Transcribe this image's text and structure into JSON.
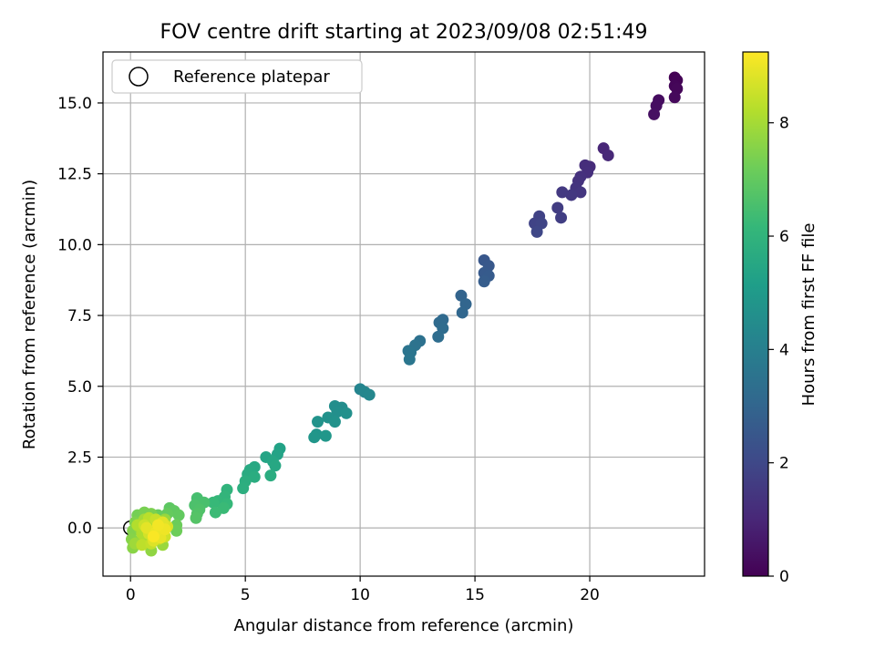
{
  "chart_data": {
    "type": "scatter",
    "title": "FOV centre drift starting at 2023/09/08 02:51:49",
    "xlabel": "Angular distance from reference (arcmin)",
    "ylabel": "Rotation from reference (arcmin)",
    "xlim": [
      -1.2,
      25.0
    ],
    "ylim": [
      -1.7,
      16.8
    ],
    "xticks": [
      0,
      5,
      10,
      15,
      20
    ],
    "xtick_labels": [
      "0",
      "5",
      "10",
      "15",
      "20"
    ],
    "yticks": [
      0.0,
      2.5,
      5.0,
      7.5,
      10.0,
      12.5,
      15.0
    ],
    "ytick_labels": [
      "0.0",
      "2.5",
      "5.0",
      "7.5",
      "10.0",
      "12.5",
      "15.0"
    ],
    "grid": true,
    "legend": {
      "position": "top-left",
      "entries": [
        "Reference platepar"
      ]
    },
    "reference_point": {
      "x": 0,
      "y": 0
    },
    "colorbar": {
      "label": "Hours from first FF file",
      "range": [
        0,
        9.25
      ],
      "ticks": [
        0,
        2,
        4,
        6,
        8
      ],
      "tick_labels": [
        "0",
        "2",
        "4",
        "6",
        "8"
      ],
      "colormap": "viridis"
    },
    "series": [
      {
        "values": [
          {
            "x": 23.7,
            "y": 15.9,
            "t": 0.0
          },
          {
            "x": 23.8,
            "y": 15.8,
            "t": 0.05
          },
          {
            "x": 23.7,
            "y": 15.6,
            "t": 0.1
          },
          {
            "x": 23.8,
            "y": 15.5,
            "t": 0.15
          },
          {
            "x": 23.7,
            "y": 15.2,
            "t": 0.2
          },
          {
            "x": 23.0,
            "y": 15.1,
            "t": 0.3
          },
          {
            "x": 22.9,
            "y": 14.9,
            "t": 0.35
          },
          {
            "x": 22.8,
            "y": 14.6,
            "t": 0.4
          },
          {
            "x": 20.6,
            "y": 13.4,
            "t": 1.0
          },
          {
            "x": 20.8,
            "y": 13.15,
            "t": 1.05
          },
          {
            "x": 20.0,
            "y": 12.75,
            "t": 1.15
          },
          {
            "x": 19.8,
            "y": 12.8,
            "t": 1.2
          },
          {
            "x": 19.9,
            "y": 12.55,
            "t": 1.25
          },
          {
            "x": 19.6,
            "y": 12.4,
            "t": 1.3
          },
          {
            "x": 19.5,
            "y": 12.25,
            "t": 1.35
          },
          {
            "x": 19.4,
            "y": 12.0,
            "t": 1.4
          },
          {
            "x": 19.6,
            "y": 11.85,
            "t": 1.45
          },
          {
            "x": 19.2,
            "y": 11.75,
            "t": 1.5
          },
          {
            "x": 18.8,
            "y": 11.85,
            "t": 1.55
          },
          {
            "x": 18.6,
            "y": 11.3,
            "t": 1.65
          },
          {
            "x": 18.75,
            "y": 10.95,
            "t": 1.7
          },
          {
            "x": 17.8,
            "y": 11.0,
            "t": 1.8
          },
          {
            "x": 17.6,
            "y": 10.75,
            "t": 1.85
          },
          {
            "x": 17.9,
            "y": 10.75,
            "t": 1.9
          },
          {
            "x": 17.7,
            "y": 10.45,
            "t": 1.95
          },
          {
            "x": 15.4,
            "y": 9.45,
            "t": 2.5
          },
          {
            "x": 15.6,
            "y": 9.25,
            "t": 2.55
          },
          {
            "x": 15.4,
            "y": 9.0,
            "t": 2.6
          },
          {
            "x": 15.6,
            "y": 8.9,
            "t": 2.65
          },
          {
            "x": 15.4,
            "y": 8.7,
            "t": 2.7
          },
          {
            "x": 14.4,
            "y": 8.2,
            "t": 2.95
          },
          {
            "x": 14.6,
            "y": 7.9,
            "t": 3.0
          },
          {
            "x": 14.45,
            "y": 7.6,
            "t": 3.05
          },
          {
            "x": 13.6,
            "y": 7.35,
            "t": 3.15
          },
          {
            "x": 13.45,
            "y": 7.25,
            "t": 3.2
          },
          {
            "x": 13.6,
            "y": 7.05,
            "t": 3.25
          },
          {
            "x": 13.4,
            "y": 6.75,
            "t": 3.3
          },
          {
            "x": 12.6,
            "y": 6.6,
            "t": 3.45
          },
          {
            "x": 12.4,
            "y": 6.45,
            "t": 3.5
          },
          {
            "x": 12.1,
            "y": 6.25,
            "t": 3.55
          },
          {
            "x": 12.2,
            "y": 6.2,
            "t": 3.6
          },
          {
            "x": 12.15,
            "y": 5.95,
            "t": 3.65
          },
          {
            "x": 10.0,
            "y": 4.9,
            "t": 4.2
          },
          {
            "x": 10.2,
            "y": 4.8,
            "t": 4.25
          },
          {
            "x": 10.4,
            "y": 4.7,
            "t": 4.3
          },
          {
            "x": 9.2,
            "y": 4.25,
            "t": 4.5
          },
          {
            "x": 8.9,
            "y": 4.3,
            "t": 4.55
          },
          {
            "x": 9.0,
            "y": 4.1,
            "t": 4.6
          },
          {
            "x": 9.4,
            "y": 4.05,
            "t": 4.62
          },
          {
            "x": 8.6,
            "y": 3.9,
            "t": 4.65
          },
          {
            "x": 8.9,
            "y": 3.75,
            "t": 4.7
          },
          {
            "x": 8.15,
            "y": 3.75,
            "t": 4.75
          },
          {
            "x": 8.1,
            "y": 3.3,
            "t": 4.8
          },
          {
            "x": 8.0,
            "y": 3.2,
            "t": 4.85
          },
          {
            "x": 8.5,
            "y": 3.25,
            "t": 4.9
          },
          {
            "x": 6.5,
            "y": 2.8,
            "t": 5.3
          },
          {
            "x": 6.4,
            "y": 2.6,
            "t": 5.35
          },
          {
            "x": 5.9,
            "y": 2.5,
            "t": 5.4
          },
          {
            "x": 6.2,
            "y": 2.35,
            "t": 5.45
          },
          {
            "x": 6.3,
            "y": 2.2,
            "t": 5.5
          },
          {
            "x": 5.4,
            "y": 2.15,
            "t": 5.55
          },
          {
            "x": 5.2,
            "y": 2.05,
            "t": 5.6
          },
          {
            "x": 5.1,
            "y": 1.9,
            "t": 5.65
          },
          {
            "x": 6.1,
            "y": 1.85,
            "t": 5.7
          },
          {
            "x": 5.4,
            "y": 1.8,
            "t": 5.72
          },
          {
            "x": 5.0,
            "y": 1.65,
            "t": 5.75
          },
          {
            "x": 4.9,
            "y": 1.4,
            "t": 5.8
          },
          {
            "x": 4.2,
            "y": 1.35,
            "t": 6.0
          },
          {
            "x": 4.1,
            "y": 1.1,
            "t": 6.05
          },
          {
            "x": 3.8,
            "y": 0.95,
            "t": 6.1
          },
          {
            "x": 4.2,
            "y": 0.85,
            "t": 6.15
          },
          {
            "x": 3.6,
            "y": 0.9,
            "t": 6.2
          },
          {
            "x": 4.05,
            "y": 0.7,
            "t": 6.25
          },
          {
            "x": 3.7,
            "y": 0.55,
            "t": 6.3
          },
          {
            "x": 2.9,
            "y": 1.05,
            "t": 6.5
          },
          {
            "x": 3.2,
            "y": 0.9,
            "t": 6.55
          },
          {
            "x": 2.8,
            "y": 0.8,
            "t": 6.6
          },
          {
            "x": 3.0,
            "y": 0.65,
            "t": 6.65
          },
          {
            "x": 2.9,
            "y": 0.5,
            "t": 6.7
          },
          {
            "x": 2.85,
            "y": 0.35,
            "t": 6.75
          },
          {
            "x": 1.7,
            "y": 0.7,
            "t": 6.9
          },
          {
            "x": 1.9,
            "y": 0.6,
            "t": 6.95
          },
          {
            "x": 2.1,
            "y": 0.45,
            "t": 7.0
          },
          {
            "x": 1.6,
            "y": 0.5,
            "t": 7.05
          },
          {
            "x": 1.2,
            "y": 0.45,
            "t": 7.1
          },
          {
            "x": 2.0,
            "y": 0.1,
            "t": 7.15
          },
          {
            "x": 2.0,
            "y": -0.1,
            "t": 7.2
          },
          {
            "x": 0.3,
            "y": 0.45,
            "t": 7.3
          },
          {
            "x": 0.6,
            "y": 0.55,
            "t": 7.35
          },
          {
            "x": 0.9,
            "y": 0.5,
            "t": 7.4
          },
          {
            "x": 0.2,
            "y": 0.2,
            "t": 7.45
          },
          {
            "x": 0.1,
            "y": -0.1,
            "t": 7.5
          },
          {
            "x": 0.05,
            "y": -0.4,
            "t": 7.55
          },
          {
            "x": 0.1,
            "y": -0.7,
            "t": 7.6
          },
          {
            "x": 0.3,
            "y": -0.5,
            "t": 7.65
          },
          {
            "x": 0.9,
            "y": -0.8,
            "t": 7.7
          },
          {
            "x": 0.4,
            "y": 0.0,
            "t": 7.75
          },
          {
            "x": 1.5,
            "y": 0.3,
            "t": 7.8
          },
          {
            "x": 1.4,
            "y": -0.6,
            "t": 7.85
          },
          {
            "x": 0.2,
            "y": -0.55,
            "t": 7.9
          },
          {
            "x": 0.6,
            "y": 0.3,
            "t": 8.0
          },
          {
            "x": 0.7,
            "y": -0.3,
            "t": 8.05
          },
          {
            "x": 1.0,
            "y": 0.15,
            "t": 8.1
          },
          {
            "x": 0.5,
            "y": -0.2,
            "t": 8.15
          },
          {
            "x": 0.3,
            "y": 0.1,
            "t": 8.2
          },
          {
            "x": 1.2,
            "y": -0.4,
            "t": 8.25
          },
          {
            "x": 0.8,
            "y": 0.35,
            "t": 8.3
          },
          {
            "x": 0.5,
            "y": -0.6,
            "t": 8.35
          },
          {
            "x": 1.3,
            "y": 0.0,
            "t": 8.4
          },
          {
            "x": 0.9,
            "y": -0.55,
            "t": 8.45
          },
          {
            "x": 1.1,
            "y": 0.3,
            "t": 8.5
          },
          {
            "x": 0.6,
            "y": 0.1,
            "t": 8.55
          },
          {
            "x": 1.5,
            "y": -0.3,
            "t": 8.6
          },
          {
            "x": 0.8,
            "y": -0.2,
            "t": 8.65
          },
          {
            "x": 1.2,
            "y": -0.1,
            "t": 8.7
          },
          {
            "x": 1.6,
            "y": 0.05,
            "t": 8.75
          },
          {
            "x": 1.0,
            "y": -0.45,
            "t": 8.8
          },
          {
            "x": 1.4,
            "y": 0.2,
            "t": 8.85
          },
          {
            "x": 0.7,
            "y": 0.0,
            "t": 8.9
          },
          {
            "x": 1.3,
            "y": -0.35,
            "t": 8.95
          },
          {
            "x": 1.1,
            "y": -0.15,
            "t": 9.0
          },
          {
            "x": 1.5,
            "y": -0.05,
            "t": 9.05
          },
          {
            "x": 1.2,
            "y": 0.1,
            "t": 9.1
          },
          {
            "x": 1.0,
            "y": -0.3,
            "t": 9.2
          }
        ]
      }
    ]
  }
}
